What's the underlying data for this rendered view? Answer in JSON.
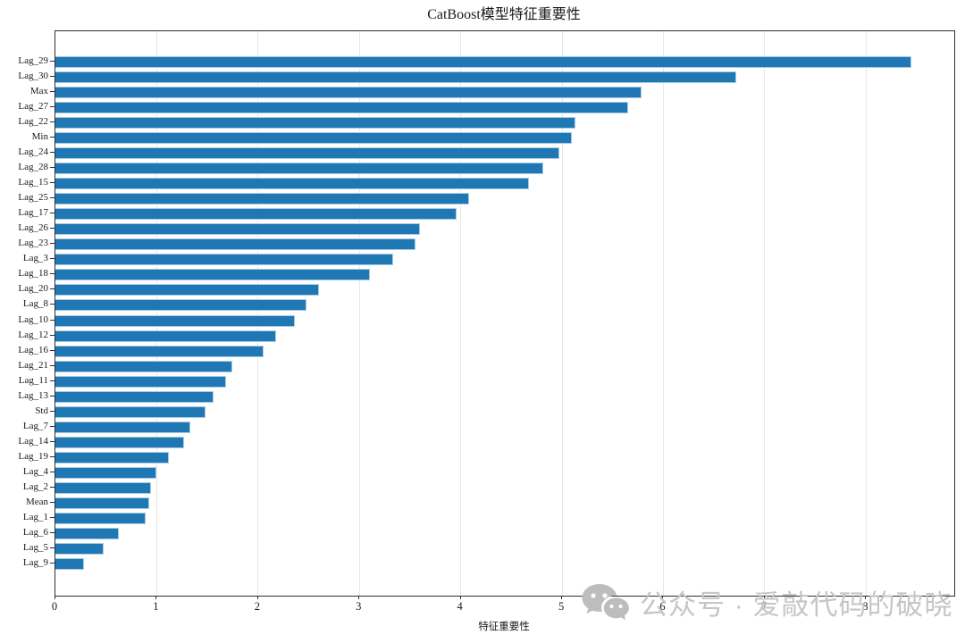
{
  "title": "CatBoost模型特征重要性",
  "xlabel": "特征重要性",
  "watermark": {
    "icon": "wechat-icon",
    "text": "公众号 · 爱敲代码的破晓"
  },
  "colors": {
    "bar": "#1f77b4",
    "bar_edge": "#a9cbe4",
    "grid": "#e7e7e7",
    "spine": "#2e2e2e",
    "text": "#1a1a1a",
    "watermark": "#c6c6c6"
  },
  "chart_data": {
    "type": "bar",
    "orientation": "horizontal",
    "title": "CatBoost模型特征重要性",
    "xlabel": "特征重要性",
    "ylabel": "",
    "xlim": [
      0,
      8.87
    ],
    "xticks": [
      0,
      1,
      2,
      3,
      4,
      5,
      6,
      7,
      8
    ],
    "grid": true,
    "legend": false,
    "categories": [
      "Lag_29",
      "Lag_30",
      "Max",
      "Lag_27",
      "Lag_22",
      "Min",
      "Lag_24",
      "Lag_28",
      "Lag_15",
      "Lag_25",
      "Lag_17",
      "Lag_26",
      "Lag_23",
      "Lag_3",
      "Lag_18",
      "Lag_20",
      "Lag_8",
      "Lag_10",
      "Lag_12",
      "Lag_16",
      "Lag_21",
      "Lag_11",
      "Lag_13",
      "Std",
      "Lag_7",
      "Lag_14",
      "Lag_19",
      "Lag_4",
      "Lag_2",
      "Mean",
      "Lag_1",
      "Lag_6",
      "Lag_5",
      "Lag_9"
    ],
    "values": [
      8.45,
      6.72,
      5.78,
      5.65,
      5.13,
      5.1,
      4.97,
      4.81,
      4.67,
      4.08,
      3.96,
      3.6,
      3.55,
      3.33,
      3.1,
      2.6,
      2.48,
      2.36,
      2.18,
      2.05,
      1.75,
      1.68,
      1.56,
      1.48,
      1.33,
      1.27,
      1.12,
      1.0,
      0.94,
      0.93,
      0.89,
      0.63,
      0.48,
      0.28
    ]
  }
}
